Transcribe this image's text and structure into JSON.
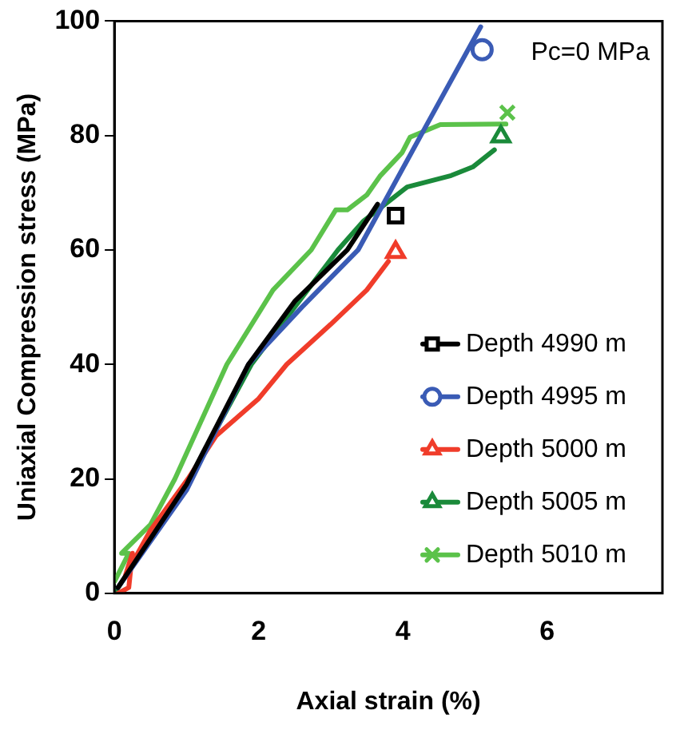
{
  "chart_data": {
    "type": "line",
    "xlabel": "Axial strain (%)",
    "ylabel": "Uniaxial Compression stress (MPa)",
    "annotations": [
      "Pc=0 MPa"
    ],
    "xlim": [
      0,
      7.6
    ],
    "xticks": [
      0,
      2,
      4,
      6
    ],
    "ylim": [
      0,
      100
    ],
    "yticks": [
      0,
      20,
      40,
      60,
      80,
      100
    ],
    "grid": false,
    "legend": "bottom right",
    "series": [
      {
        "name": "Depth 4990 m",
        "color": "#000000",
        "x": [
          0.05,
          1,
          1.86,
          2.5,
          3.23,
          3.65
        ],
        "values": [
          1,
          19,
          40,
          51,
          60,
          68
        ]
      },
      {
        "type": "scatter",
        "color": "#000000",
        "marker": "square",
        "x": [
          3.9
        ],
        "values": [
          66
        ]
      },
      {
        "name": "Depth 4995 m",
        "color": "#3a5bb5",
        "x": [
          0.05,
          1,
          1.86,
          2.6,
          3.38,
          4.25,
          5.08
        ],
        "values": [
          1,
          18,
          40,
          50,
          60,
          80,
          99
        ]
      },
      {
        "type": "scatter",
        "color": "#3a5bb5",
        "marker": "circle",
        "x": [
          5.1
        ],
        "values": [
          95
        ]
      },
      {
        "name": "Depth 5000 m",
        "color": "#f03c2a",
        "x": [
          0.05,
          0.2,
          0.25,
          0.15,
          0.5,
          1.02,
          1.41,
          2,
          2.39,
          3,
          3.5,
          3.8
        ],
        "values": [
          0,
          1,
          7,
          3,
          11,
          20,
          27.5,
          34,
          40,
          47,
          53,
          58
        ]
      },
      {
        "type": "scatter",
        "color": "#f03c2a",
        "marker": "triangle",
        "x": [
          3.9
        ],
        "values": [
          59.6
        ]
      },
      {
        "name": "Depth 5005 m",
        "color": "#1a8a3a",
        "x": [
          0,
          1,
          1.9,
          3.1,
          3.45,
          4.06,
          4.67,
          4.97,
          5.27
        ],
        "values": [
          0,
          19,
          40,
          60,
          65,
          71,
          73,
          74.5,
          77.5
        ]
      },
      {
        "type": "scatter",
        "color": "#1a8a3a",
        "marker": "triangle",
        "x": [
          5.36
        ],
        "values": [
          79.8
        ]
      },
      {
        "name": "Depth 5010 m",
        "color": "#5bc24a",
        "x": [
          0,
          0.2,
          0.1,
          0.5,
          0.84,
          1.56,
          2.2,
          2.73,
          3.07,
          3.23,
          3.5,
          3.69,
          3.99,
          4.1,
          4.52,
          5.43
        ],
        "values": [
          2,
          7,
          7,
          12,
          20,
          40,
          53,
          60,
          67,
          67,
          69.6,
          73,
          77,
          79.7,
          81.9,
          82
        ]
      },
      {
        "type": "scatter",
        "color": "#5bc24a",
        "marker": "cross",
        "x": [
          5.45
        ],
        "values": [
          84
        ]
      }
    ]
  }
}
